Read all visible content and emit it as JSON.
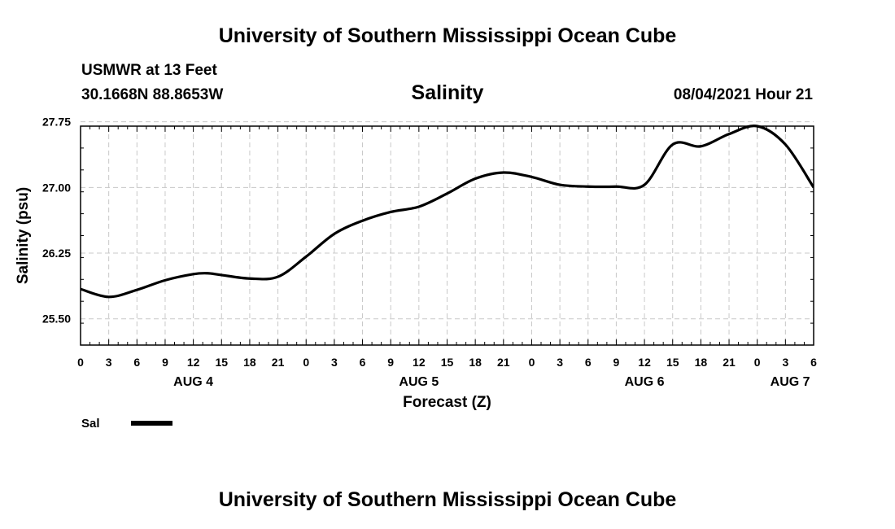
{
  "header": {
    "title": "University of Southern Mississippi Ocean Cube",
    "station": "USMWR at 13 Feet",
    "coordinates": "30.1668N  88.8653W",
    "datetime": "08/04/2021 Hour 21"
  },
  "footer": {
    "title": "University of Southern Mississippi Ocean Cube"
  },
  "chart_data": {
    "type": "line",
    "title": "Salinity",
    "xlabel": "Forecast (Z)",
    "ylabel": "Salinity (psu)",
    "ylim": [
      25.2,
      27.7
    ],
    "xlim": [
      0,
      78
    ],
    "grid": true,
    "y_ticks": [
      25.5,
      26.25,
      27.0,
      27.75
    ],
    "y_tick_labels": [
      "25.50",
      "26.25",
      "27.00",
      "27.75"
    ],
    "x_ticks": [
      0,
      3,
      6,
      9,
      12,
      15,
      18,
      21,
      24,
      27,
      30,
      33,
      36,
      39,
      42,
      45,
      48,
      51,
      54,
      57,
      60,
      63,
      66,
      69,
      72,
      75,
      78
    ],
    "x_tick_labels": [
      "0",
      "3",
      "6",
      "9",
      "12",
      "15",
      "18",
      "21",
      "0",
      "3",
      "6",
      "9",
      "12",
      "15",
      "18",
      "21",
      "0",
      "3",
      "6",
      "9",
      "12",
      "15",
      "18",
      "21",
      "0",
      "3",
      "6"
    ],
    "day_labels": [
      {
        "label": "AUG 4",
        "hour": 12
      },
      {
        "label": "AUG 5",
        "hour": 36
      },
      {
        "label": "AUG 6",
        "hour": 60
      },
      {
        "label": "AUG 7",
        "hour": 75.5
      }
    ],
    "legend": {
      "label": "Sal",
      "position": "bottom-left"
    },
    "series": [
      {
        "name": "Sal",
        "x": [
          0,
          3,
          6,
          9,
          12,
          13.5,
          15,
          18,
          21,
          24,
          27,
          30,
          33,
          36,
          39,
          42,
          45,
          48,
          51,
          54,
          57,
          60,
          63,
          66,
          69,
          72,
          75,
          78
        ],
        "values": [
          25.84,
          25.75,
          25.83,
          25.94,
          26.01,
          26.02,
          26.0,
          25.96,
          25.98,
          26.21,
          26.47,
          26.62,
          26.72,
          26.78,
          26.93,
          27.1,
          27.17,
          27.12,
          27.03,
          27.01,
          27.01,
          27.03,
          27.49,
          27.47,
          27.61,
          27.7,
          27.49,
          27.0
        ]
      }
    ]
  }
}
